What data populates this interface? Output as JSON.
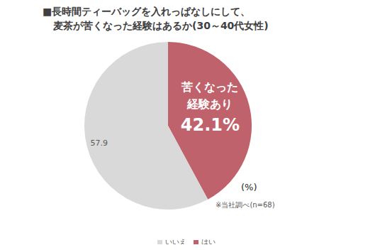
{
  "chart_data": {
    "type": "pie",
    "title": "■長時間ティーバッグを入れっぱなしにして、\n麦茶が苦くなった経験はあるか(30～40代女性)",
    "categories": [
      "はい",
      "いいえ"
    ],
    "values": [
      42.1,
      57.9
    ],
    "value_labels": [
      "42.1%",
      "57.9"
    ],
    "colors": [
      "#c0626b",
      "#d9d9d9"
    ],
    "data_labels": true,
    "legend": "bottom",
    "annotations": [
      "苦くなった\n経験あり",
      "(%)",
      "※当社調べ(n=68)"
    ]
  }
}
